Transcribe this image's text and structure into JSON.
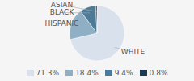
{
  "chart_data": {
    "type": "pie",
    "categories": [
      "WHITE",
      "HISPANIC",
      "BLACK",
      "ASIAN"
    ],
    "values": [
      71.3,
      18.4,
      9.4,
      0.8
    ],
    "value_labels": [
      "71.3%",
      "18.4%",
      "9.4%",
      "0.8%"
    ],
    "colors": [
      "#d9e1ec",
      "#8fafc4",
      "#4d7a96",
      "#1a3a52"
    ],
    "legend": "bottom"
  }
}
